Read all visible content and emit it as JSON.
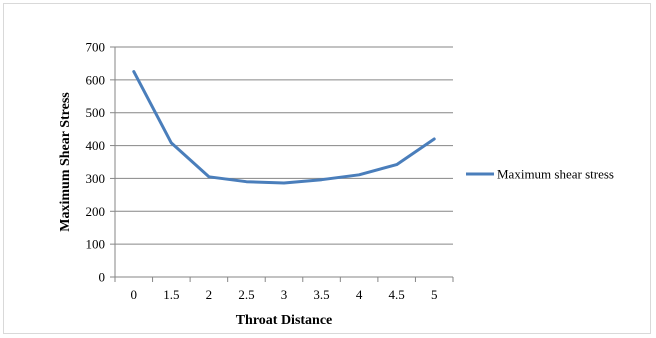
{
  "chart_data": {
    "type": "line",
    "categories": [
      "0",
      "1.5",
      "2",
      "2.5",
      "3",
      "3.5",
      "4",
      "4.5",
      "5"
    ],
    "series": [
      {
        "name": "Maximum shear stress",
        "values": [
          625,
          408,
          305,
          290,
          286,
          296,
          311,
          342,
          420
        ],
        "color": "#4a7ebb"
      }
    ],
    "xlabel": "Throat Distance",
    "ylabel": "Maximum Shear Stress",
    "ylim": [
      0,
      700
    ],
    "yticks": [
      "0",
      "100",
      "200",
      "300",
      "400",
      "500",
      "600",
      "700"
    ],
    "grid": true,
    "legend_position": "right"
  }
}
